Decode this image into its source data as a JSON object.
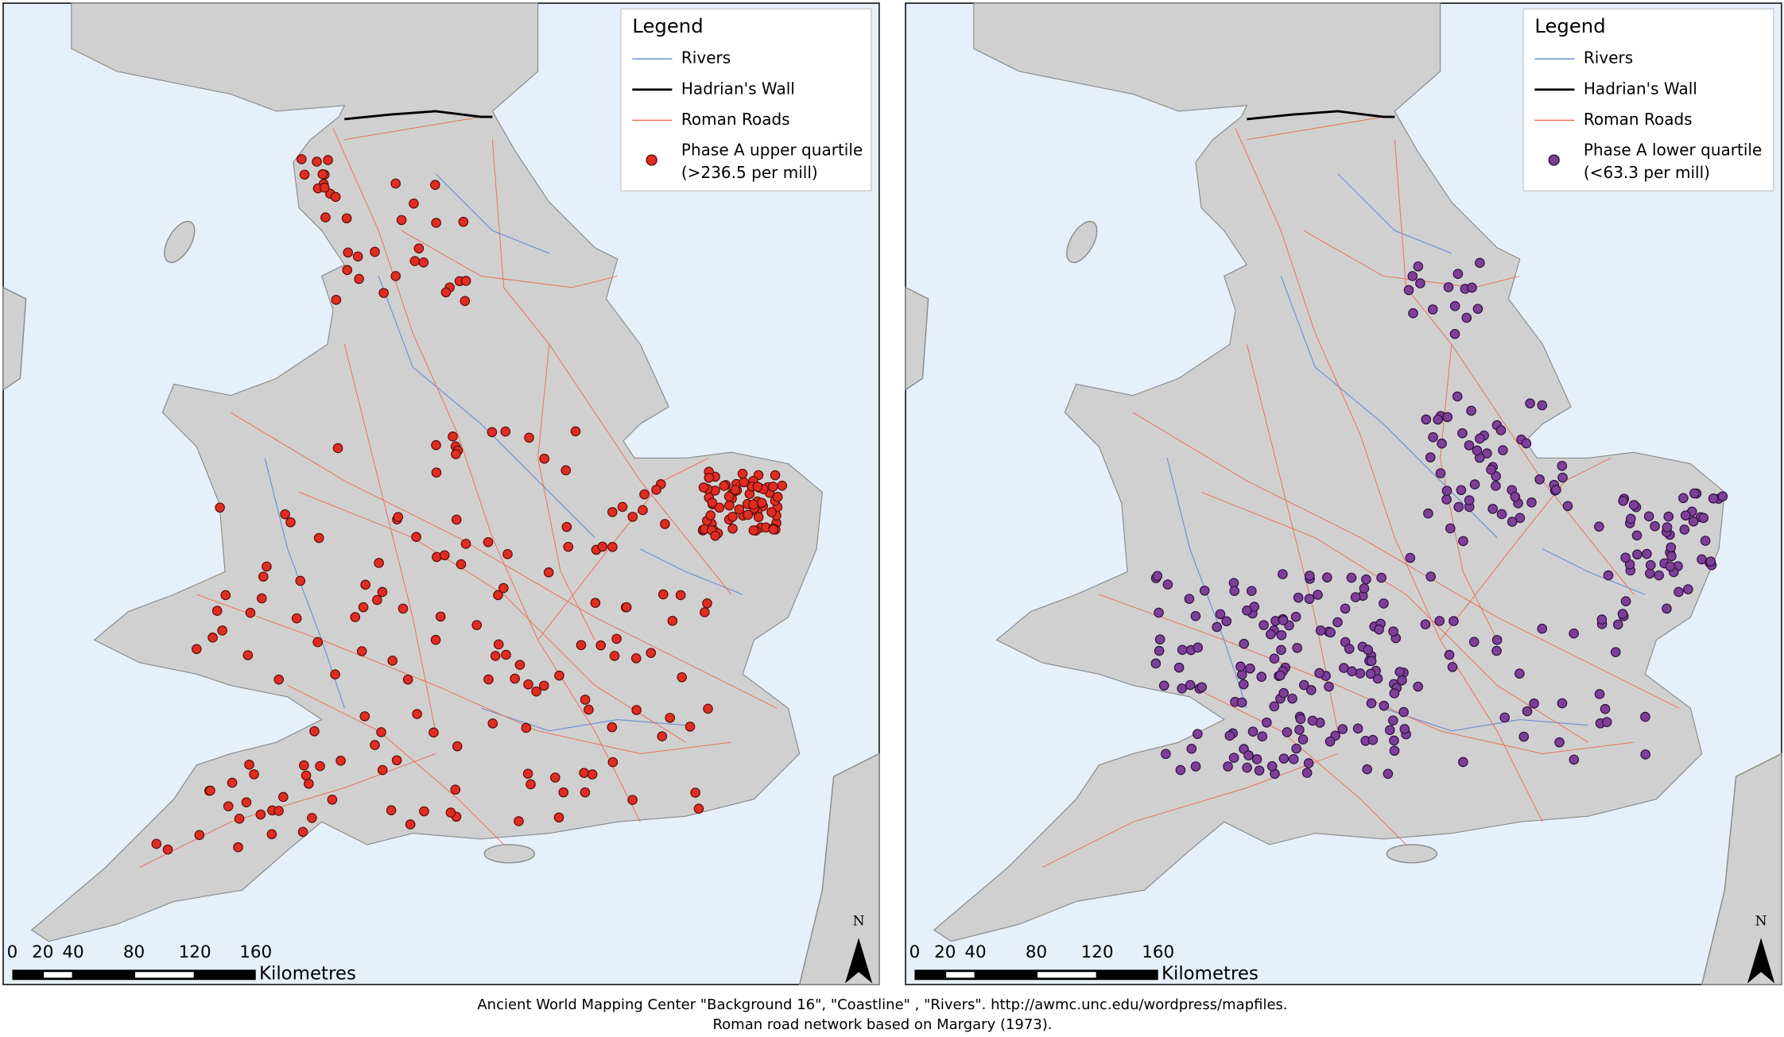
{
  "panels": [
    {
      "legend": {
        "title": "Legend",
        "items": [
          {
            "label": "Rivers"
          },
          {
            "label": "Hadrian's Wall"
          },
          {
            "label": "Roman Roads"
          },
          {
            "label": "Phase A upper quartile",
            "sublabel": "(>236.5 per mill)"
          }
        ]
      },
      "scale_bar": {
        "ticks": [
          0,
          20,
          40,
          80,
          120,
          160
        ],
        "unit": "Kilometres"
      },
      "north": "N"
    },
    {
      "legend": {
        "title": "Legend",
        "items": [
          {
            "label": "Rivers"
          },
          {
            "label": "Hadrian's Wall"
          },
          {
            "label": "Roman Roads"
          },
          {
            "label": "Phase A lower quartile",
            "sublabel": "(<63.3 per mill)"
          }
        ]
      },
      "scale_bar": {
        "ticks": [
          0,
          20,
          40,
          80,
          120,
          160
        ],
        "unit": "Kilometres"
      },
      "north": "N"
    }
  ],
  "caption": {
    "lines": [
      "Ancient World Mapping Center \"Background 16\", \"Coastline\" , \"Rivers\". http://awmc.unc.edu/wordpress/mapfiles.",
      "Roman road network based on Margary (1973)."
    ]
  }
}
